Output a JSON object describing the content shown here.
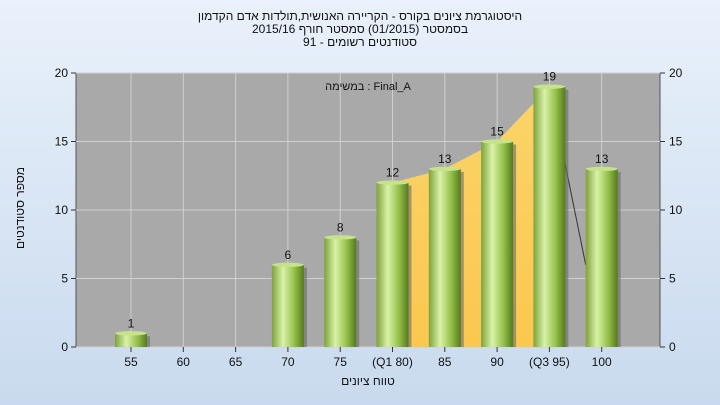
{
  "header": {
    "line1": "היסטוגרמת ציונים בקורס - הקריירה האנושית,תולדות אדם הקדמון",
    "line2": "בסמסטר  (01/2015)  סמסטר חורף 2015/16",
    "line3": "סטודנטים רשומים - 91"
  },
  "annotation": "במשימה : Final_A",
  "chart_data": {
    "type": "bar",
    "categories": [
      "55",
      "60",
      "65",
      "70",
      "75",
      "(Q1 80)",
      "85",
      "90",
      "(Q3 95)",
      "100"
    ],
    "values": [
      1,
      0,
      0,
      6,
      8,
      12,
      13,
      15,
      19,
      13
    ],
    "xlabel": "טווח ציונים",
    "ylabel": "מספר סטודנטים",
    "ylim": [
      0,
      20
    ],
    "yticks": [
      0,
      5,
      10,
      15,
      20
    ],
    "secondary_y_axis": true,
    "quartile_band": {
      "from": "(Q1 80)",
      "to": "(Q3 95)",
      "color": "#ffcc55"
    },
    "trend_line_after": {
      "from": "(Q3 95)",
      "to_value": 6
    },
    "grid": true,
    "colors": {
      "bar_light": "#d6f0a0",
      "bar_mid": "#9cc64c",
      "bar_dark": "#557a1e",
      "plot_bg": "#a9a9a9"
    }
  }
}
